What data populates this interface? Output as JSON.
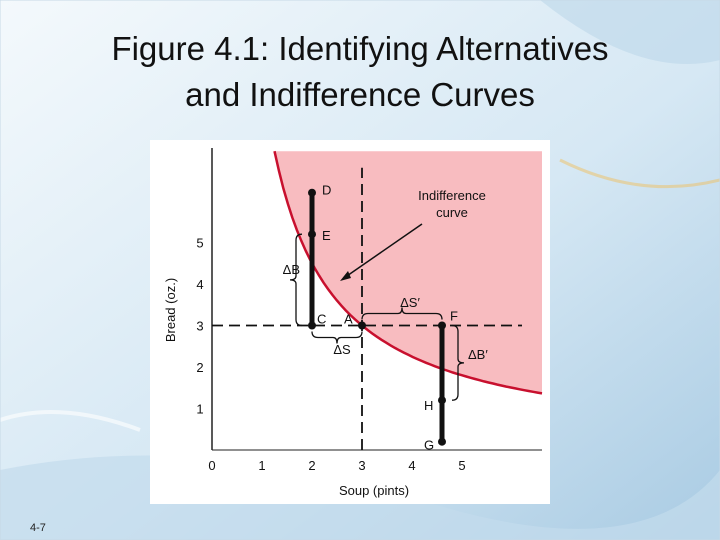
{
  "slide": {
    "title_line1": "Figure 4.1: Identifying Alternatives",
    "title_line2": "and Indifference Curves",
    "page_number": "4-7"
  },
  "figure": {
    "xlabel": "Soup (pints)",
    "ylabel": "Bread (oz.)",
    "x_ticks": [
      "0",
      "1",
      "2",
      "3",
      "4",
      "5"
    ],
    "y_ticks": [
      "1",
      "2",
      "3",
      "4",
      "5"
    ],
    "region_color": "#f8bcc0",
    "curve_color": "#c8102e",
    "curve_label_line1": "Indifference",
    "curve_label_line2": "curve",
    "points": [
      {
        "label": "D",
        "x": 2,
        "y": 6.2
      },
      {
        "label": "E",
        "x": 2,
        "y": 5.2
      },
      {
        "label": "C",
        "x": 2,
        "y": 3
      },
      {
        "label": "A",
        "x": 3,
        "y": 3
      },
      {
        "label": "F",
        "x": 4.6,
        "y": 3
      },
      {
        "label": "H",
        "x": 4.6,
        "y": 1.2
      },
      {
        "label": "G",
        "x": 4.6,
        "y": 0.2
      }
    ],
    "delta_labels": {
      "dB": "ΔB",
      "dS": "ΔS",
      "dS_prime": "ΔS′",
      "dB_prime": "ΔB′"
    }
  }
}
